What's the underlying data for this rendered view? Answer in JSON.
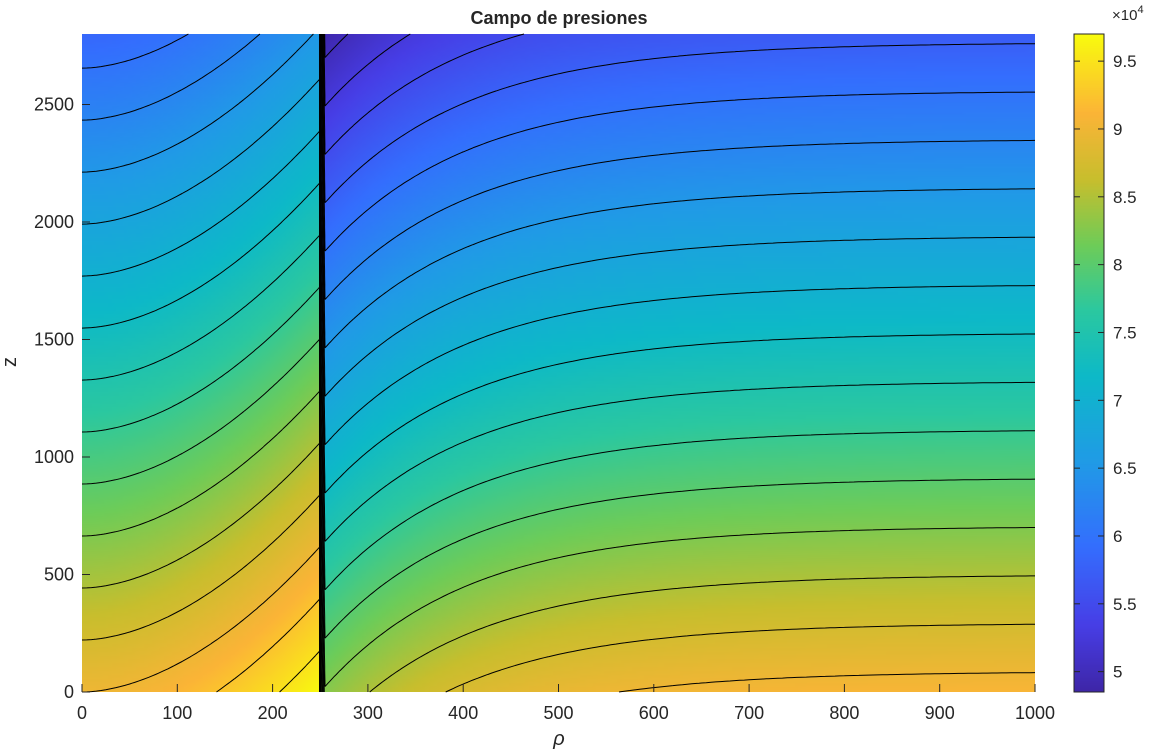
{
  "chart_data": {
    "type": "heatmap",
    "title": "Campo de presiones",
    "xlabel": "ρ",
    "ylabel": "z",
    "xlim": [
      0,
      1000
    ],
    "ylim": [
      0,
      2800
    ],
    "x_ticks": [
      0,
      100,
      200,
      300,
      400,
      500,
      600,
      700,
      800,
      900,
      1000
    ],
    "y_ticks": [
      0,
      500,
      1000,
      1500,
      2000,
      2500
    ],
    "interface_rho": 250,
    "colorbar": {
      "colormap": "parula",
      "exponent_label": "×10",
      "exponent": "4",
      "clim": [
        48500,
        97000
      ],
      "ticks": [
        5,
        5.5,
        6,
        6.5,
        7,
        7.5,
        8,
        8.5,
        9,
        9.5
      ],
      "position": "right"
    },
    "pressure_field": {
      "inner_region": {
        "rho_range": [
          0,
          250
        ],
        "p_at_rho0_z0": 90000,
        "p_at_rho250_z0": 97000,
        "dp_dz": -11.3
      },
      "outer_region": {
        "rho_range": [
          250,
          1000
        ],
        "p_at_rho250_z0": 82500,
        "p_at_rho1000_z0": 91000,
        "p_at_rho250_ztop": 48500,
        "p_at_rho1000_ztop": 57000
      },
      "contour_step": 2500
    },
    "grid": false
  }
}
